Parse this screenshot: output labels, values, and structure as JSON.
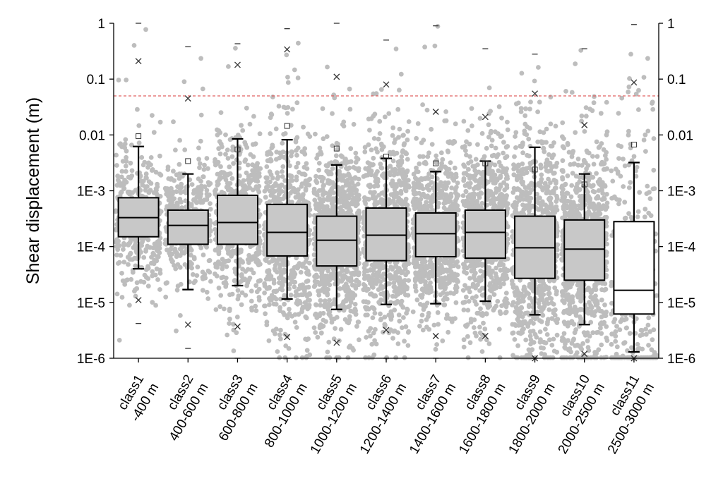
{
  "chart_data": {
    "type": "box",
    "title": "",
    "xlabel": "",
    "ylabel": "Shear displacement (m)",
    "yscale": "log",
    "ylim": [
      1e-06,
      1
    ],
    "y_ticks": [
      "1",
      "0.1",
      "0.01",
      "1E-3",
      "1E-4",
      "1E-5",
      "1E-6"
    ],
    "y_tick_values": [
      1,
      0.1,
      0.01,
      0.001,
      0.0001,
      1e-05,
      1e-06
    ],
    "reference_line": {
      "y": 0.05,
      "color": "#e06060",
      "style": "dashed"
    },
    "categories": [
      [
        "class1",
        "-400 m"
      ],
      [
        "class2",
        "400-600 m"
      ],
      [
        "class3",
        "600-800 m"
      ],
      [
        "class4",
        "800-1000 m"
      ],
      [
        "class5",
        "1000-1200 m"
      ],
      [
        "class6",
        "1200-1400 m"
      ],
      [
        "class7",
        "1400-1600 m"
      ],
      [
        "class8",
        "1600-1800 m"
      ],
      [
        "class9",
        "1800-2000 m"
      ],
      [
        "class10",
        "2000-2500 m"
      ],
      [
        "class11",
        "2500-3000 m"
      ]
    ],
    "boxes": [
      {
        "q1": 0.00015,
        "median": 0.00033,
        "q3": 0.00075,
        "whisker_low": 4e-05,
        "whisker_high": 0.0062,
        "mean": 0.0095,
        "p1": 1.1e-05,
        "p99": 0.21,
        "min": 4.2e-06,
        "max": 1.0,
        "points": 380,
        "fill": "#c8c8c8"
      },
      {
        "q1": 0.00011,
        "median": 0.00024,
        "q3": 0.00045,
        "whisker_low": 1.7e-05,
        "whisker_high": 0.002,
        "mean": 0.0034,
        "p1": 4e-06,
        "p99": 0.045,
        "min": 1.5e-06,
        "max": 0.38,
        "points": 340,
        "fill": "#c8c8c8"
      },
      {
        "q1": 0.00011,
        "median": 0.00027,
        "q3": 0.00083,
        "whisker_low": 2e-05,
        "whisker_high": 0.0085,
        "mean": 0.0055,
        "p1": 3.7e-06,
        "p99": 0.18,
        "min": 1e-06,
        "max": 0.43,
        "points": 500,
        "fill": "#c8c8c8"
      },
      {
        "q1": 6.8e-05,
        "median": 0.00018,
        "q3": 0.00057,
        "whisker_low": 1.15e-05,
        "whisker_high": 0.0082,
        "mean": 0.0145,
        "p1": 2.4e-06,
        "p99": 0.34,
        "min": 1e-06,
        "max": 0.8,
        "points": 650,
        "fill": "#c8c8c8"
      },
      {
        "q1": 4.5e-05,
        "median": 0.00013,
        "q3": 0.00035,
        "whisker_low": 7.5e-06,
        "whisker_high": 0.0029,
        "mean": 0.0057,
        "p1": 1.9e-06,
        "p99": 0.11,
        "min": 1e-06,
        "max": 1.0,
        "points": 800,
        "fill": "#c8c8c8"
      },
      {
        "q1": 5.6e-05,
        "median": 0.00016,
        "q3": 0.00049,
        "whisker_low": 9.2e-06,
        "whisker_high": 0.0038,
        "mean": 0.0041,
        "p1": 3.2e-06,
        "p99": 0.08,
        "min": 1e-06,
        "max": 0.5,
        "points": 750,
        "fill": "#c8c8c8"
      },
      {
        "q1": 6.6e-05,
        "median": 0.00017,
        "q3": 0.0004,
        "whisker_low": 9.5e-06,
        "whisker_high": 0.0022,
        "mean": 0.0031,
        "p1": 2.5e-06,
        "p99": 0.026,
        "min": 1e-06,
        "max": 0.9,
        "points": 750,
        "fill": "#c8c8c8"
      },
      {
        "q1": 6.2e-05,
        "median": 0.00018,
        "q3": 0.00045,
        "whisker_low": 1.05e-05,
        "whisker_high": 0.0034,
        "mean": 0.0031,
        "p1": 2.5e-06,
        "p99": 0.021,
        "min": 1e-06,
        "max": 0.35,
        "points": 750,
        "fill": "#c8c8c8"
      },
      {
        "q1": 2.7e-05,
        "median": 9.5e-05,
        "q3": 0.00035,
        "whisker_low": 6e-06,
        "whisker_high": 0.006,
        "mean": 0.0024,
        "p1": 1e-06,
        "p99": 0.055,
        "min": 1e-06,
        "max": 0.28,
        "points": 800,
        "fill": "#c8c8c8"
      },
      {
        "q1": 2.5e-05,
        "median": 9e-05,
        "q3": 0.0003,
        "whisker_low": 4e-06,
        "whisker_high": 0.002,
        "mean": 0.0013,
        "p1": 1.2e-06,
        "p99": 0.015,
        "min": 1e-06,
        "max": 0.35,
        "points": 800,
        "fill": "#c8c8c8"
      },
      {
        "q1": 6.2e-06,
        "median": 1.65e-05,
        "q3": 0.00028,
        "whisker_low": 1.3e-06,
        "whisker_high": 0.0032,
        "mean": 0.0067,
        "p1": 1e-06,
        "p99": 0.087,
        "min": 1e-06,
        "max": 0.95,
        "points": 300,
        "fill": "#ffffff"
      }
    ],
    "scatter_color": "#bdbdbd",
    "grid": false,
    "legend": "none"
  }
}
